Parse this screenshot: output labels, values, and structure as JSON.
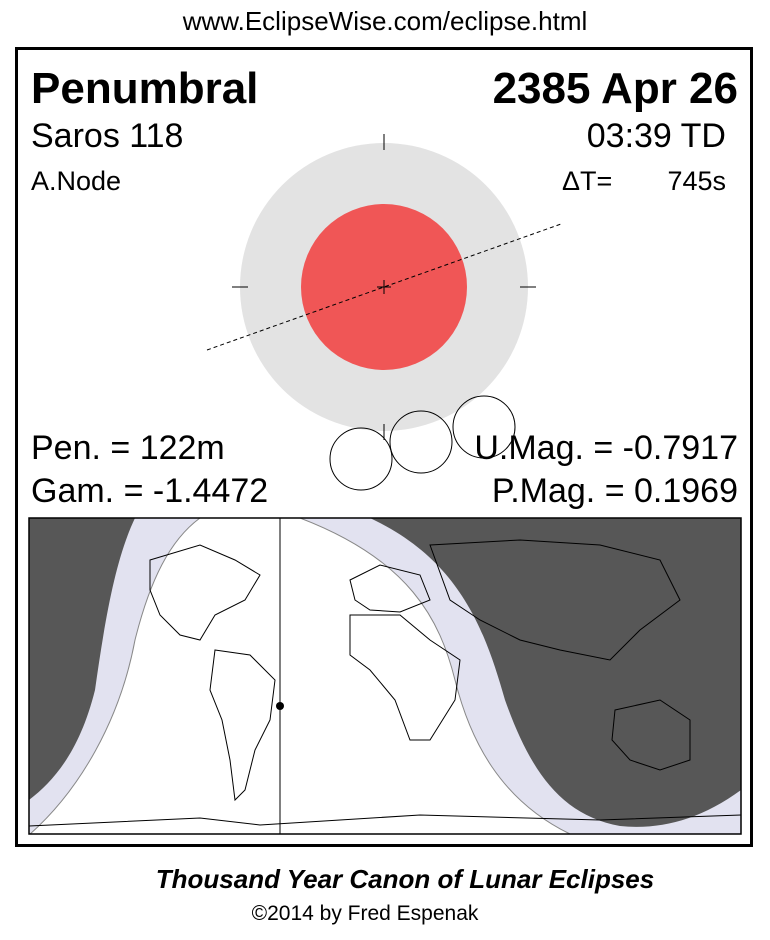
{
  "header_url": "www.EclipseWise.com/eclipse.html",
  "eclipse": {
    "type": "Penumbral",
    "date": "2385 Apr 26",
    "saros": "Saros 118",
    "time": "03:39 TD",
    "node": "A.Node",
    "delta_t_label": "ΔT=",
    "delta_t_value": "745s",
    "penumbral_duration": "Pen. = 122m",
    "gamma": "Gam. = -1.4472",
    "umbral_magnitude": "U.Mag. = -0.7917",
    "penumbral_magnitude": "P.Mag. = 0.1969"
  },
  "colors": {
    "penumbra": "#e3e3e3",
    "umbra": "#f05656",
    "night": "#575757",
    "penumbral_zone": "#e2e2f0"
  },
  "footer": {
    "title": "Thousand Year Canon of Lunar Eclipses",
    "copyright": "©2014 by Fred Espenak"
  }
}
